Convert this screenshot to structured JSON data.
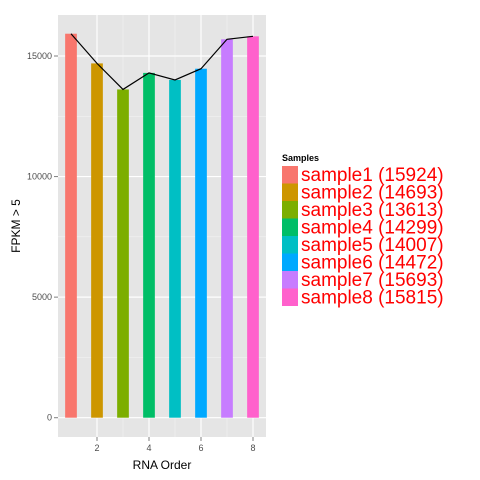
{
  "chart_data": {
    "type": "bar",
    "x": [
      1,
      2,
      3,
      4,
      5,
      6,
      7,
      8
    ],
    "values": [
      15924,
      14693,
      13613,
      14299,
      14007,
      14472,
      15693,
      15815
    ],
    "line_values": [
      15924,
      14693,
      13613,
      14299,
      14007,
      14472,
      15693,
      15815
    ],
    "colors": [
      "#F8766D",
      "#CD9600",
      "#7CAE00",
      "#00BE67",
      "#00BFC4",
      "#00A9FF",
      "#C77CFF",
      "#FF61CC"
    ],
    "xlabel": "RNA Order",
    "ylabel": "FPKM > 5",
    "xlim": [
      0.5,
      8.5
    ],
    "ylim": [
      -800,
      16700
    ],
    "xticks": [
      2,
      4,
      6,
      8
    ],
    "xtick_labels": [
      "2",
      "4",
      "6",
      "8"
    ],
    "yticks": [
      0,
      5000,
      10000,
      15000
    ],
    "ytick_labels": [
      "0",
      "5000",
      "10000",
      "15000"
    ],
    "grid": true,
    "legend": {
      "title": "Samples",
      "placement": "right",
      "entries": [
        "sample1 (15924)",
        "sample2 (14693)",
        "sample3 (13613)",
        "sample4 (14299)",
        "sample5 (14007)",
        "sample6 (14472)",
        "sample7 (15693)",
        "sample8 (15815)"
      ]
    }
  }
}
